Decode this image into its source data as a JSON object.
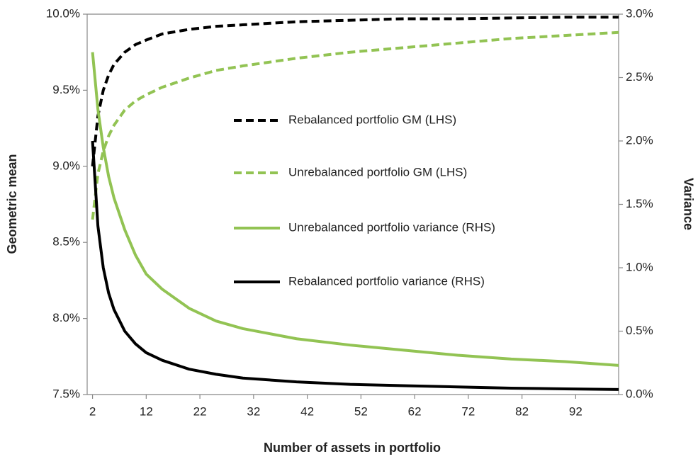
{
  "chart_data": {
    "type": "line",
    "x_label": "Number of assets in portfolio",
    "y_label": "Geometric mean",
    "y2_label": "Variance",
    "x": [
      2,
      3,
      4,
      5,
      6,
      8,
      10,
      12,
      15,
      20,
      25,
      30,
      40,
      50,
      60,
      70,
      80,
      90,
      100
    ],
    "xlim": [
      1,
      100
    ],
    "xticks": [
      2,
      12,
      22,
      32,
      42,
      52,
      62,
      72,
      82,
      92
    ],
    "ylim": [
      7.5,
      10
    ],
    "yticks": [
      {
        "value": 7.5,
        "label": "7.5%"
      },
      {
        "value": 8,
        "label": "8.0%"
      },
      {
        "value": 8.5,
        "label": "8.5%"
      },
      {
        "value": 9,
        "label": "9.0%"
      },
      {
        "value": 9.5,
        "label": "9.5%"
      },
      {
        "value": 10,
        "label": "10.0%"
      }
    ],
    "y2lim": [
      0,
      3
    ],
    "y2ticks": [
      {
        "value": 0,
        "label": "0.0%"
      },
      {
        "value": 0.5,
        "label": "0.5%"
      },
      {
        "value": 1,
        "label": "1.0%"
      },
      {
        "value": 1.5,
        "label": "1.5%"
      },
      {
        "value": 2,
        "label": "2.0%"
      },
      {
        "value": 2.5,
        "label": "2.5%"
      },
      {
        "value": 3,
        "label": "3.0%"
      }
    ],
    "legend": "center",
    "series": [
      {
        "name": "Rebalanced portfolio GM (LHS)",
        "color": "#000000",
        "dashed": true,
        "values": [
          9.0,
          9.33,
          9.5,
          9.6,
          9.67,
          9.75,
          9.8,
          9.83,
          9.87,
          9.9,
          9.92,
          9.93,
          9.95,
          9.96,
          9.97,
          9.97,
          9.975,
          9.98,
          9.98
        ]
      },
      {
        "name": "Unrebalanced portfolio GM (LHS)",
        "color": "#92c353",
        "dashed": true,
        "values": [
          8.65,
          8.95,
          9.1,
          9.2,
          9.27,
          9.37,
          9.43,
          9.47,
          9.52,
          9.58,
          9.63,
          9.66,
          9.71,
          9.75,
          9.78,
          9.81,
          9.84,
          9.86,
          9.88
        ]
      },
      {
        "name": "Unrebalanced portfolio variance (RHS)",
        "color": "#92c353",
        "dashed": false,
        "axis": "y2",
        "values": [
          2.7,
          2.25,
          1.95,
          1.72,
          1.55,
          1.3,
          1.1,
          0.95,
          0.83,
          0.68,
          0.58,
          0.52,
          0.44,
          0.39,
          0.35,
          0.31,
          0.28,
          0.26,
          0.23
        ]
      },
      {
        "name": "Rebalanced portfolio variance (RHS)",
        "color": "#000000",
        "dashed": false,
        "axis": "y2",
        "values": [
          2.0,
          1.33,
          1.0,
          0.8,
          0.67,
          0.5,
          0.4,
          0.33,
          0.27,
          0.2,
          0.16,
          0.13,
          0.1,
          0.08,
          0.07,
          0.06,
          0.05,
          0.045,
          0.04
        ]
      }
    ]
  }
}
